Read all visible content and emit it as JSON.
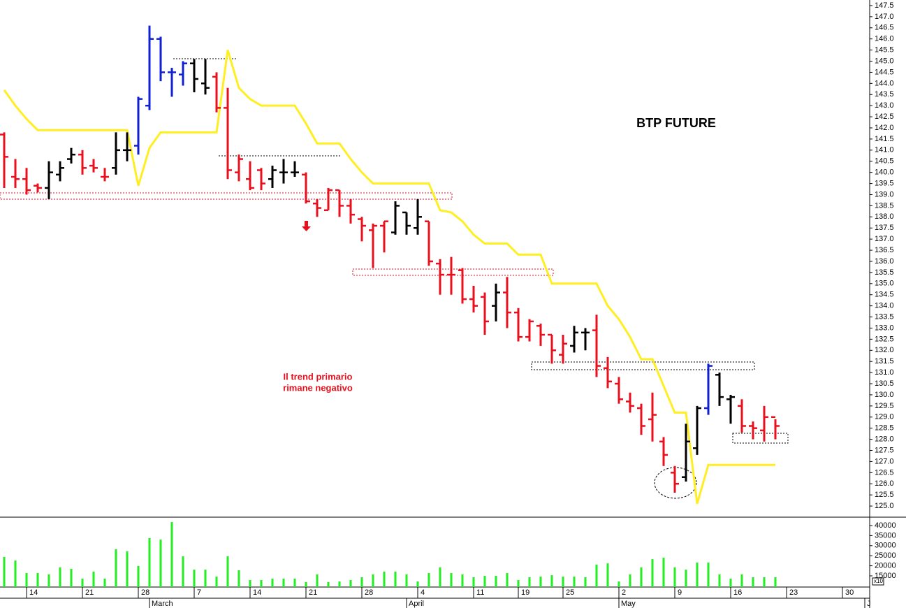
{
  "chart_data": [
    {
      "type": "ohlc",
      "title": "BTP FUTURE",
      "annotation": [
        "Il trend primario",
        "rimane negativo"
      ],
      "open": [
        141.7,
        139.8,
        139.7,
        139.4,
        139.3,
        139.9,
        140.6,
        140.8,
        140.3,
        139.8,
        140.2,
        141.0,
        141.2,
        143.0,
        146.0,
        144.5,
        144.4,
        144.9,
        144.0,
        144.3,
        142.9,
        140.0,
        139.7,
        140.1,
        139.7,
        140.0,
        140.0,
        139.9,
        138.6,
        138.3,
        139.2,
        138.5,
        137.9,
        137.4,
        137.6,
        137.3,
        138.2,
        137.5,
        137.8,
        135.9,
        135.4,
        135.6,
        134.3,
        134.4,
        134.0,
        134.6,
        133.7,
        132.6,
        133.1,
        132.7,
        131.8,
        132.2,
        132.8,
        132.9,
        131.2,
        130.5,
        129.7,
        129.4,
        128.9,
        127.9,
        126.5,
        126.3,
        127.6,
        129.4,
        130.9,
        129.8,
        129.5,
        128.6,
        128.4,
        129.0,
        null,
        null,
        null,
        null,
        null,
        null,
        null,
        null
      ],
      "high": [
        141.8,
        140.6,
        140.2,
        139.5,
        140.5,
        140.5,
        141.1,
        141.0,
        140.6,
        140.2,
        141.8,
        141.8,
        143.4,
        146.6,
        146.1,
        144.7,
        145.0,
        145.1,
        145.1,
        144.5,
        143.8,
        140.8,
        140.5,
        140.2,
        140.3,
        140.6,
        140.5,
        140.0,
        138.8,
        139.3,
        139.2,
        138.8,
        138.0,
        137.7,
        137.8,
        138.7,
        138.2,
        138.8,
        137.8,
        136.1,
        136.2,
        135.7,
        134.9,
        134.6,
        135.0,
        135.3,
        133.9,
        133.4,
        133.2,
        132.7,
        132.7,
        133.1,
        133.0,
        133.6,
        131.7,
        130.8,
        130.1,
        129.6,
        130.1,
        128.1,
        126.8,
        128.7,
        129.5,
        131.4,
        131.0,
        130.0,
        129.8,
        128.8,
        129.5,
        128.9,
        null,
        null,
        null,
        null,
        null,
        null,
        null,
        null
      ],
      "low": [
        139.3,
        139.3,
        139.0,
        139.1,
        138.8,
        139.6,
        140.4,
        139.9,
        140.0,
        139.6,
        139.9,
        140.5,
        140.8,
        142.8,
        144.1,
        143.4,
        143.9,
        143.6,
        143.5,
        142.7,
        139.7,
        139.6,
        139.2,
        139.2,
        139.3,
        139.5,
        139.8,
        138.6,
        138.0,
        138.3,
        138.0,
        137.7,
        136.9,
        135.7,
        136.4,
        137.2,
        137.2,
        137.2,
        135.8,
        134.5,
        134.5,
        134.1,
        133.7,
        132.7,
        133.3,
        133.0,
        132.4,
        132.4,
        132.2,
        131.4,
        131.4,
        131.9,
        132.0,
        130.8,
        130.3,
        129.6,
        129.2,
        128.2,
        127.9,
        126.8,
        125.6,
        126.1,
        127.3,
        129.1,
        129.5,
        128.7,
        128.3,
        128.0,
        127.9,
        128.0,
        null,
        null,
        null,
        null,
        null,
        null,
        null,
        null
      ],
      "close": [
        140.7,
        139.7,
        139.2,
        139.3,
        140.0,
        140.2,
        140.8,
        140.2,
        140.2,
        139.8,
        141.0,
        141.0,
        143.3,
        146.0,
        144.5,
        144.5,
        144.9,
        144.2,
        143.8,
        142.9,
        140.1,
        140.6,
        139.3,
        139.5,
        140.1,
        140.0,
        140.0,
        138.7,
        138.4,
        139.2,
        138.5,
        138.1,
        137.6,
        137.6,
        137.8,
        138.5,
        137.6,
        138.0,
        136.0,
        135.4,
        135.4,
        134.3,
        134.0,
        133.3,
        134.6,
        133.7,
        132.6,
        133.3,
        132.7,
        132.0,
        132.3,
        132.8,
        132.8,
        131.3,
        130.6,
        129.8,
        129.5,
        128.6,
        129.1,
        127.3,
        126.0,
        127.9,
        129.4,
        131.3,
        129.9,
        129.9,
        128.6,
        128.5,
        129.0,
        128.6,
        null,
        null,
        null,
        null,
        null,
        null,
        null,
        null
      ],
      "colors": [
        "#e8101c",
        "#e8101c",
        "#e8101c",
        "#e8101c",
        "#000000",
        "#000000",
        "#000000",
        "#e8101c",
        "#e8101c",
        "#e8101c",
        "#000000",
        "#000000",
        "#1020d0",
        "#1020d0",
        "#1020d0",
        "#1020d0",
        "#1020d0",
        "#000000",
        "#000000",
        "#e8101c",
        "#e8101c",
        "#e8101c",
        "#e8101c",
        "#e8101c",
        "#000000",
        "#000000",
        "#000000",
        "#e8101c",
        "#e8101c",
        "#e8101c",
        "#e8101c",
        "#e8101c",
        "#e8101c",
        "#e8101c",
        "#e8101c",
        "#000000",
        "#000000",
        "#000000",
        "#e8101c",
        "#e8101c",
        "#e8101c",
        "#e8101c",
        "#e8101c",
        "#e8101c",
        "#000000",
        "#e8101c",
        "#e8101c",
        "#e8101c",
        "#e8101c",
        "#e8101c",
        "#e8101c",
        "#000000",
        "#000000",
        "#e8101c",
        "#e8101c",
        "#e8101c",
        "#e8101c",
        "#e8101c",
        "#e8101c",
        "#e8101c",
        "#e8101c",
        "#000000",
        "#000000",
        "#1020d0",
        "#000000",
        "#000000",
        "#e8101c",
        "#e8101c",
        "#e8101c",
        "#e8101c",
        null,
        null,
        null,
        null,
        null,
        null,
        null,
        null
      ],
      "overlay": {
        "type": "line",
        "color": "#ffee22",
        "values": [
          143.7,
          143.0,
          142.4,
          141.9,
          141.9,
          141.9,
          141.9,
          141.9,
          141.9,
          141.9,
          141.9,
          141.9,
          139.4,
          141.1,
          141.8,
          141.8,
          141.8,
          141.8,
          141.8,
          141.8,
          145.5,
          143.8,
          143.3,
          143.0,
          143.0,
          143.0,
          143.0,
          142.2,
          141.3,
          141.3,
          141.3,
          140.6,
          140.0,
          139.5,
          139.5,
          139.5,
          139.5,
          139.5,
          139.5,
          138.3,
          138.2,
          137.8,
          137.2,
          136.8,
          136.8,
          136.8,
          136.3,
          136.3,
          136.3,
          135.0,
          135.0,
          135.0,
          135.0,
          135.0,
          134.0,
          133.4,
          132.6,
          131.6,
          131.6,
          130.4,
          129.2,
          129.2,
          125.1,
          126.85,
          126.85,
          126.85,
          126.85,
          126.85,
          126.85,
          126.85,
          null,
          null,
          null,
          null,
          null,
          null,
          null,
          null
        ]
      },
      "ylim": [
        124.5,
        147.75
      ],
      "yticks": [
        {
          "value": 125,
          "label": "125.0"
        },
        125.5,
        {
          "value": 126,
          "label": "126.0"
        },
        126.5,
        {
          "value": 127,
          "label": "127.0"
        },
        127.5,
        {
          "value": 128,
          "label": "128.0"
        },
        128.5,
        {
          "value": 129,
          "label": "129.0"
        },
        129.5,
        {
          "value": 130,
          "label": "130.0"
        },
        130.5,
        {
          "value": 131,
          "label": "131.0"
        },
        131.5,
        {
          "value": 132,
          "label": "132.0"
        },
        132.5,
        {
          "value": 133,
          "label": "133.0"
        },
        133.5,
        {
          "value": 134,
          "label": "134.0"
        },
        134.5,
        {
          "value": 135,
          "label": "135.0"
        },
        135.5,
        {
          "value": 136,
          "label": "136.0"
        },
        136.5,
        {
          "value": 137,
          "label": "137.0"
        },
        137.5,
        {
          "value": 138,
          "label": "138.0"
        },
        138.5,
        {
          "value": 139,
          "label": "139.0"
        },
        139.5,
        {
          "value": 140,
          "label": "140.0"
        },
        140.5,
        {
          "value": 141,
          "label": "141.0"
        },
        141.5,
        {
          "value": 142,
          "label": "142.0"
        },
        142.5,
        {
          "value": 143,
          "label": "143.0"
        },
        143.5,
        {
          "value": 144,
          "label": "144.0"
        },
        144.5,
        {
          "value": 145,
          "label": "145.0"
        },
        145.5,
        {
          "value": 146,
          "label": "146.0"
        },
        146.5,
        {
          "value": 147,
          "label": "147.0"
        },
        147.5
      ]
    },
    {
      "type": "bar",
      "color": "#22ee22",
      "multiplier_label": "x10",
      "categories": [
        null,
        null,
        "14",
        null,
        null,
        null,
        null,
        "21",
        null,
        null,
        null,
        null,
        "28",
        null,
        null,
        null,
        null,
        "7",
        null,
        null,
        null,
        null,
        "14",
        null,
        null,
        null,
        null,
        "21",
        null,
        null,
        null,
        null,
        "28",
        null,
        null,
        null,
        null,
        "4",
        null,
        null,
        null,
        null,
        "11",
        null,
        null,
        null,
        "19",
        null,
        null,
        null,
        "25",
        null,
        null,
        null,
        null,
        "2",
        null,
        null,
        null,
        null,
        "9",
        null,
        null,
        null,
        null,
        "16",
        null,
        null,
        null,
        null,
        "23",
        null,
        null,
        null,
        null,
        "30",
        null,
        null
      ],
      "months": [
        null,
        null,
        null,
        null,
        null,
        null,
        null,
        null,
        null,
        null,
        null,
        null,
        null,
        "March",
        null,
        null,
        null,
        null,
        null,
        null,
        null,
        null,
        null,
        null,
        null,
        null,
        null,
        null,
        null,
        null,
        null,
        null,
        null,
        null,
        null,
        null,
        "April",
        null,
        null,
        null,
        null,
        null,
        null,
        null,
        null,
        null,
        null,
        null,
        null,
        null,
        null,
        null,
        null,
        null,
        null,
        "May",
        null,
        null,
        null,
        null,
        null,
        null,
        null,
        null,
        null,
        null,
        null,
        null,
        null,
        null,
        null,
        null,
        null,
        null,
        null,
        null,
        null,
        "J"
      ],
      "values": [
        24400,
        22600,
        16400,
        16400,
        15700,
        19200,
        18500,
        13600,
        17100,
        13600,
        28200,
        27200,
        19900,
        33750,
        33000,
        41700,
        24700,
        18100,
        18100,
        14600,
        24700,
        17800,
        12900,
        12900,
        13600,
        13600,
        13600,
        11900,
        15700,
        11900,
        12200,
        12900,
        14300,
        15700,
        17100,
        17100,
        15700,
        12200,
        16400,
        19200,
        16400,
        15700,
        14300,
        15000,
        15000,
        16400,
        12900,
        14300,
        14600,
        15300,
        14600,
        14600,
        14300,
        20600,
        21200,
        12200,
        15700,
        19200,
        23300,
        24000,
        19200,
        18100,
        21600,
        21600,
        15700,
        13600,
        15700,
        14300,
        14300,
        14300,
        null,
        null,
        null,
        null,
        null,
        null,
        null,
        null
      ],
      "ylim": [
        9440,
        44170
      ],
      "yticks": [
        15000,
        20000,
        25000,
        30000,
        35000,
        40000
      ]
    }
  ]
}
